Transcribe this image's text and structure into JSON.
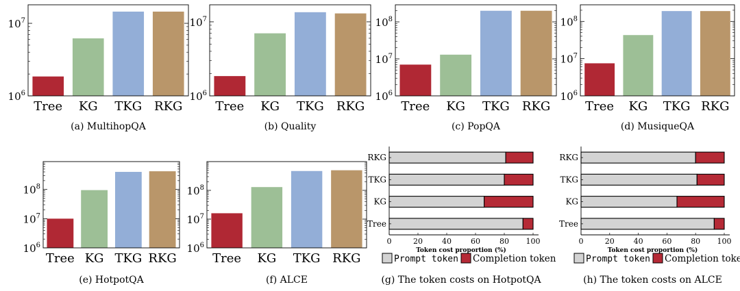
{
  "colors": {
    "Tree": "#b02834",
    "KG": "#9dbf96",
    "TKG": "#93aed7",
    "RKG": "#b9966a",
    "prompt": "#d3d3d3",
    "completion": "#b52a36"
  },
  "chart_data": [
    {
      "type": "bar",
      "id": "a",
      "caption": "(a) MultihopQA",
      "log_scale": true,
      "categories": [
        "Tree",
        "KG",
        "TKG",
        "RKG"
      ],
      "values": [
        1850000,
        6200000,
        14500000,
        14500000
      ],
      "ylim": [
        1000000,
        18000000
      ],
      "ticks": [
        {
          "value": 1000000,
          "base": "10",
          "exp": "6"
        },
        {
          "value": 10000000,
          "base": "10",
          "exp": "7"
        }
      ]
    },
    {
      "type": "bar",
      "id": "b",
      "caption": "(b) Quality",
      "log_scale": true,
      "categories": [
        "Tree",
        "KG",
        "TKG",
        "RKG"
      ],
      "values": [
        1850000,
        7000000,
        13500000,
        13000000
      ],
      "ylim": [
        1000000,
        17000000
      ],
      "ticks": [
        {
          "value": 1000000,
          "base": "10",
          "exp": "6"
        },
        {
          "value": 10000000,
          "base": "10",
          "exp": "7"
        }
      ]
    },
    {
      "type": "bar",
      "id": "c",
      "caption": "(c) PopQA",
      "log_scale": true,
      "categories": [
        "Tree",
        "KG",
        "TKG",
        "RKG"
      ],
      "values": [
        7000000,
        13000000,
        200000000,
        200000000
      ],
      "ylim": [
        1000000,
        290000000
      ],
      "ticks": [
        {
          "value": 1000000,
          "base": "10",
          "exp": "6"
        },
        {
          "value": 10000000,
          "base": "10",
          "exp": "7"
        },
        {
          "value": 100000000,
          "base": "10",
          "exp": "8"
        }
      ]
    },
    {
      "type": "bar",
      "id": "d",
      "caption": "(d) MusiqueQA",
      "log_scale": true,
      "categories": [
        "Tree",
        "KG",
        "TKG",
        "RKG"
      ],
      "values": [
        7500000,
        43000000,
        190000000,
        190000000
      ],
      "ylim": [
        1000000,
        280000000
      ],
      "ticks": [
        {
          "value": 1000000,
          "base": "10",
          "exp": "6"
        },
        {
          "value": 10000000,
          "base": "10",
          "exp": "7"
        },
        {
          "value": 100000000,
          "base": "10",
          "exp": "8"
        }
      ]
    },
    {
      "type": "bar",
      "id": "e",
      "caption": "(e) HotpotQA",
      "log_scale": true,
      "categories": [
        "Tree",
        "KG",
        "TKG",
        "RKG"
      ],
      "values": [
        10000000,
        95000000,
        400000000,
        420000000
      ],
      "ylim": [
        1000000,
        900000000
      ],
      "ticks": [
        {
          "value": 1000000,
          "base": "10",
          "exp": "6"
        },
        {
          "value": 10000000,
          "base": "10",
          "exp": "7"
        },
        {
          "value": 100000000,
          "base": "10",
          "exp": "8"
        }
      ]
    },
    {
      "type": "bar",
      "id": "f",
      "caption": "(f) ALCE",
      "log_scale": true,
      "categories": [
        "Tree",
        "KG",
        "TKG",
        "RKG"
      ],
      "values": [
        16000000,
        130000000,
        470000000,
        500000000
      ],
      "ylim": [
        1000000,
        1000000000
      ],
      "ticks": [
        {
          "value": 1000000,
          "base": "10",
          "exp": "6"
        },
        {
          "value": 10000000,
          "base": "10",
          "exp": "7"
        },
        {
          "value": 100000000,
          "base": "10",
          "exp": "8"
        }
      ]
    },
    {
      "type": "stacked-hbar",
      "id": "g",
      "caption": "(g) The token costs on HotpotQA",
      "categories": [
        "RKG",
        "TKG",
        "KG",
        "Tree"
      ],
      "series": [
        {
          "name": "Prompt token",
          "values": [
            81,
            80,
            66,
            93
          ]
        },
        {
          "name": "Completion token",
          "values": [
            19,
            20,
            34,
            7
          ]
        }
      ],
      "xlim": [
        0,
        100
      ],
      "xticks": [
        0,
        20,
        40,
        60,
        80,
        100
      ],
      "xlabel": "Token cost proportion (%)"
    },
    {
      "type": "stacked-hbar",
      "id": "h",
      "caption": "(h) The token costs on ALCE",
      "categories": [
        "RKG",
        "TKG",
        "KG",
        "Tree"
      ],
      "series": [
        {
          "name": "Prompt token",
          "values": [
            80,
            81,
            67,
            93
          ]
        },
        {
          "name": "Completion token",
          "values": [
            20,
            19,
            33,
            7
          ]
        }
      ],
      "xlim": [
        0,
        100
      ],
      "xticks": [
        0,
        20,
        40,
        60,
        80,
        100
      ],
      "xlabel": "Token cost proportion (%)"
    }
  ]
}
